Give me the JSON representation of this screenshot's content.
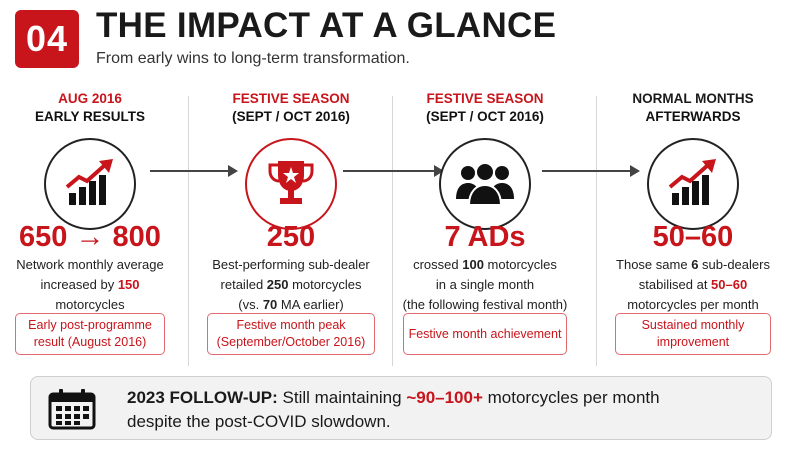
{
  "header": {
    "badge": "04",
    "title": "THE IMPACT AT A GLANCE",
    "subtitle": "From early wins to long-term transformation."
  },
  "columns": [
    {
      "head1": "AUG 2016",
      "head2": "EARLY RESULTS",
      "icon": "bar-chart-up-icon",
      "big": "650 → 800",
      "desc": {
        "a": "Network monthly average",
        "b": "increased by ",
        "b_hl": "150",
        "c": "motorcycles"
      },
      "box": [
        "Early post-programme",
        "result (August 2016)"
      ]
    },
    {
      "head1": "FESTIVE SEASON",
      "head2": "(SEPT / OCT 2016)",
      "icon": "trophy-icon",
      "big": "250",
      "desc": {
        "a": "Best-performing sub-dealer",
        "b_pre": "retailed ",
        "b_hl": "250",
        "b_post": " motorcycles",
        "c_pre": "(vs. ",
        "c_hl": "70",
        "c_post": " MA earlier)"
      },
      "box": [
        "Festive month peak",
        "(September/October 2016)"
      ]
    },
    {
      "head1": "FESTIVE SEASON",
      "head2": "(SEPT / OCT 2016)",
      "icon": "people-group-icon",
      "big": "7 ADs",
      "desc": {
        "a_pre": "crossed ",
        "a_hl": "100",
        "a_post": " motorcycles",
        "b": "in a single month",
        "c": "(the following festival month)"
      },
      "box": [
        "Festive month achievement"
      ]
    },
    {
      "head1": "NORMAL MONTHS",
      "head2": "AFTERWARDS",
      "icon": "bar-chart-up-icon",
      "big": "50–60",
      "desc": {
        "a_pre": "Those same ",
        "a_hl": "6",
        "a_post": " sub-dealers",
        "b_pre": "stabilised at ",
        "b_hl": "50–60",
        "c": "motorcycles per month"
      },
      "box": [
        "Sustained monthly",
        "improvement"
      ]
    }
  ],
  "footer": {
    "icon": "calendar-icon",
    "label": "2023 FOLLOW-UP:",
    "text_pre": " Still maintaining ",
    "highlight": "~90–100+",
    "text_post": " motorcycles per month",
    "line2": "despite the post-COVID slowdown."
  },
  "colors": {
    "accent": "#c8141b",
    "text": "#1a1a1a",
    "footer_bg": "#f2f2f2"
  }
}
